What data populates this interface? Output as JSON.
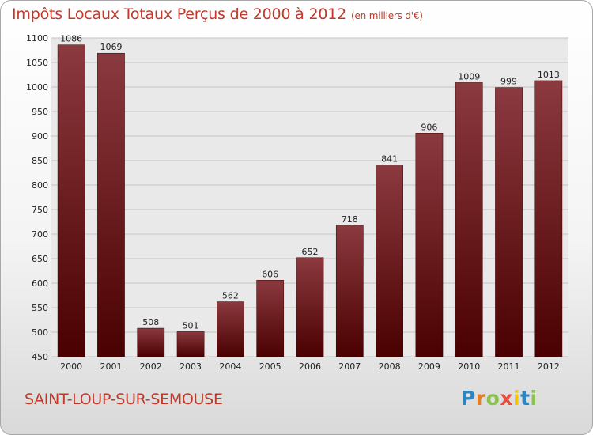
{
  "title": "Impôts Locaux Totaux Perçus de 2000 à 2012",
  "subtitle": "(en milliers d'€)",
  "commune": "SAINT-LOUP-SUR-SEMOUSE",
  "brand": {
    "letters": [
      "P",
      "r",
      "o",
      "x",
      "i",
      "t",
      "i"
    ],
    "colors": [
      "#2e86c1",
      "#e67e22",
      "#8bc34a",
      "#e74c3c",
      "#f1c40f",
      "#2e86c1",
      "#8bc34a"
    ]
  },
  "colors": {
    "accent": "#c0392b",
    "bar_top": "#8b3a3f",
    "bar_bottom": "#4a0000"
  },
  "chart_data": {
    "type": "bar",
    "title": "Impôts Locaux Totaux Perçus de 2000 à 2012",
    "subtitle": "(en milliers d'€)",
    "categories": [
      "2000",
      "2001",
      "2002",
      "2003",
      "2004",
      "2005",
      "2006",
      "2007",
      "2008",
      "2009",
      "2010",
      "2011",
      "2012"
    ],
    "values": [
      1086,
      1069,
      508,
      501,
      562,
      606,
      652,
      718,
      841,
      906,
      1009,
      999,
      1013
    ],
    "ylim": [
      450,
      1100
    ],
    "yticks": [
      450,
      500,
      550,
      600,
      650,
      700,
      750,
      800,
      850,
      900,
      950,
      1000,
      1050,
      1100
    ],
    "grid": true
  }
}
